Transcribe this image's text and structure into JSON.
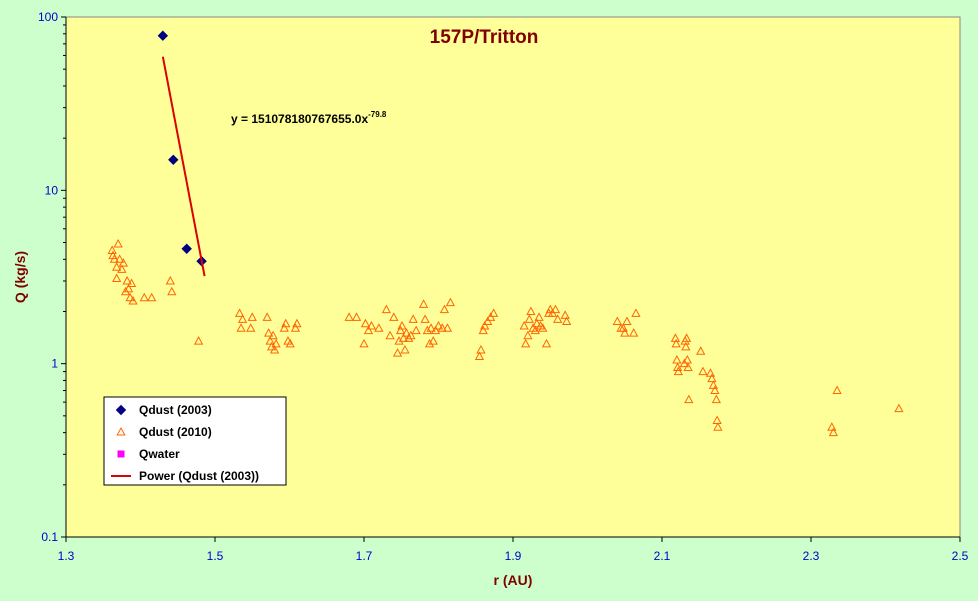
{
  "chart_data": {
    "type": "scatter",
    "title": "157P/Tritton",
    "xlabel": "r (AU)",
    "ylabel": "Q (kg/s)",
    "xlim": [
      1.3,
      2.5
    ],
    "ylim": [
      0.1,
      100
    ],
    "yscale": "log",
    "x_ticks": [
      "1.3",
      "1.5",
      "1.7",
      "1.9",
      "2.1",
      "2.3",
      "2.5"
    ],
    "y_ticks": [
      "0.1",
      "1",
      "10",
      "100"
    ],
    "grid": false,
    "legend_position": "bottom-left",
    "annotation": {
      "text": "y = 151078180767655.0x",
      "exponent": "-79.8"
    },
    "series": [
      {
        "name": "Qdust (2003)",
        "marker": "diamond",
        "color": "#000080",
        "points": [
          [
            1.43,
            78
          ],
          [
            1.444,
            15
          ],
          [
            1.462,
            4.6
          ],
          [
            1.482,
            3.9
          ]
        ]
      },
      {
        "name": "Qdust (2010)",
        "marker": "triangle",
        "color": "#ff6600",
        "points": [
          [
            1.362,
            4.5
          ],
          [
            1.363,
            4.2
          ],
          [
            1.365,
            4.0
          ],
          [
            1.368,
            3.1
          ],
          [
            1.368,
            3.6
          ],
          [
            1.37,
            4.9
          ],
          [
            1.372,
            4.0
          ],
          [
            1.375,
            3.5
          ],
          [
            1.377,
            3.8
          ],
          [
            1.38,
            2.6
          ],
          [
            1.382,
            3.0
          ],
          [
            1.384,
            2.7
          ],
          [
            1.386,
            2.4
          ],
          [
            1.388,
            2.9
          ],
          [
            1.39,
            2.3
          ],
          [
            1.405,
            2.4
          ],
          [
            1.415,
            2.4
          ],
          [
            1.44,
            3.0
          ],
          [
            1.442,
            2.6
          ],
          [
            1.478,
            1.35
          ],
          [
            1.533,
            1.95
          ],
          [
            1.535,
            1.6
          ],
          [
            1.537,
            1.8
          ],
          [
            1.548,
            1.6
          ],
          [
            1.55,
            1.85
          ],
          [
            1.57,
            1.85
          ],
          [
            1.572,
            1.5
          ],
          [
            1.574,
            1.35
          ],
          [
            1.576,
            1.25
          ],
          [
            1.578,
            1.45
          ],
          [
            1.58,
            1.2
          ],
          [
            1.582,
            1.3
          ],
          [
            1.593,
            1.6
          ],
          [
            1.595,
            1.7
          ],
          [
            1.598,
            1.35
          ],
          [
            1.601,
            1.3
          ],
          [
            1.608,
            1.6
          ],
          [
            1.61,
            1.7
          ],
          [
            1.68,
            1.85
          ],
          [
            1.69,
            1.85
          ],
          [
            1.7,
            1.3
          ],
          [
            1.702,
            1.7
          ],
          [
            1.706,
            1.55
          ],
          [
            1.71,
            1.65
          ],
          [
            1.72,
            1.6
          ],
          [
            1.73,
            2.05
          ],
          [
            1.735,
            1.45
          ],
          [
            1.74,
            1.85
          ],
          [
            1.745,
            1.15
          ],
          [
            1.747,
            1.35
          ],
          [
            1.749,
            1.55
          ],
          [
            1.751,
            1.65
          ],
          [
            1.753,
            1.4
          ],
          [
            1.755,
            1.2
          ],
          [
            1.757,
            1.5
          ],
          [
            1.76,
            1.4
          ],
          [
            1.763,
            1.45
          ],
          [
            1.766,
            1.8
          ],
          [
            1.77,
            1.55
          ],
          [
            1.78,
            2.2
          ],
          [
            1.782,
            1.8
          ],
          [
            1.785,
            1.55
          ],
          [
            1.788,
            1.3
          ],
          [
            1.79,
            1.6
          ],
          [
            1.793,
            1.35
          ],
          [
            1.796,
            1.55
          ],
          [
            1.8,
            1.65
          ],
          [
            1.805,
            1.6
          ],
          [
            1.808,
            2.05
          ],
          [
            1.812,
            1.6
          ],
          [
            1.816,
            2.25
          ],
          [
            1.855,
            1.1
          ],
          [
            1.857,
            1.2
          ],
          [
            1.86,
            1.55
          ],
          [
            1.862,
            1.65
          ],
          [
            1.866,
            1.75
          ],
          [
            1.87,
            1.85
          ],
          [
            1.874,
            1.95
          ],
          [
            1.915,
            1.65
          ],
          [
            1.917,
            1.3
          ],
          [
            1.92,
            1.45
          ],
          [
            1.922,
            1.8
          ],
          [
            1.924,
            2.0
          ],
          [
            1.927,
            1.6
          ],
          [
            1.93,
            1.55
          ],
          [
            1.932,
            1.7
          ],
          [
            1.935,
            1.85
          ],
          [
            1.937,
            1.65
          ],
          [
            1.94,
            1.6
          ],
          [
            1.945,
            1.3
          ],
          [
            1.948,
            1.95
          ],
          [
            1.95,
            2.05
          ],
          [
            1.953,
            1.95
          ],
          [
            1.957,
            2.05
          ],
          [
            1.96,
            1.8
          ],
          [
            1.97,
            1.9
          ],
          [
            1.972,
            1.75
          ],
          [
            2.04,
            1.75
          ],
          [
            2.045,
            1.6
          ],
          [
            2.048,
            1.6
          ],
          [
            2.05,
            1.5
          ],
          [
            2.053,
            1.75
          ],
          [
            2.062,
            1.5
          ],
          [
            2.065,
            1.95
          ],
          [
            2.118,
            1.4
          ],
          [
            2.119,
            1.3
          ],
          [
            2.12,
            1.05
          ],
          [
            2.121,
            0.95
          ],
          [
            2.122,
            0.9
          ],
          [
            2.13,
            1.0
          ],
          [
            2.131,
            1.35
          ],
          [
            2.132,
            1.25
          ],
          [
            2.133,
            1.4
          ],
          [
            2.134,
            1.05
          ],
          [
            2.135,
            0.95
          ],
          [
            2.136,
            0.62
          ],
          [
            2.152,
            1.18
          ],
          [
            2.155,
            0.9
          ],
          [
            2.165,
            0.88
          ],
          [
            2.167,
            0.82
          ],
          [
            2.169,
            0.75
          ],
          [
            2.171,
            0.7
          ],
          [
            2.173,
            0.62
          ],
          [
            2.174,
            0.47
          ],
          [
            2.175,
            0.43
          ],
          [
            2.328,
            0.43
          ],
          [
            2.33,
            0.4
          ],
          [
            2.335,
            0.7
          ],
          [
            2.418,
            0.55
          ]
        ]
      },
      {
        "name": "Qwater",
        "marker": "square",
        "color": "#ff00ff",
        "points": []
      },
      {
        "name": "Power (Qdust (2003))",
        "marker": "line",
        "color": "#dd0000",
        "points": [
          [
            1.43,
            59
          ],
          [
            1.486,
            3.2
          ]
        ]
      }
    ]
  }
}
